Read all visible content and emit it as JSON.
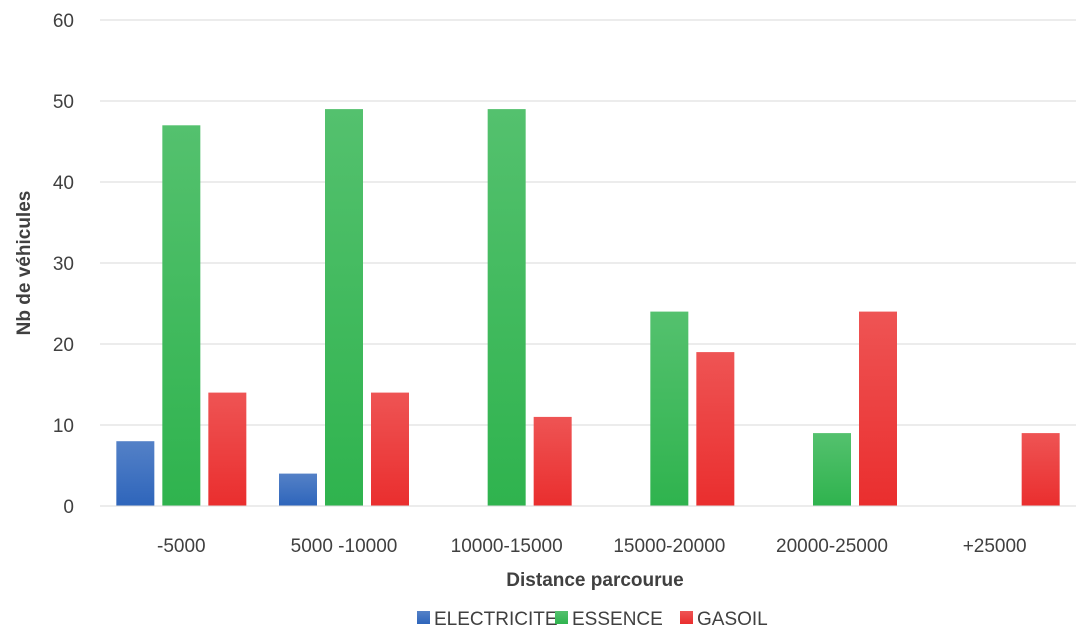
{
  "chart_data": {
    "type": "bar",
    "categories": [
      "-5000",
      "5000 -10000",
      "10000-15000",
      "15000-20000",
      "20000-25000",
      "+25000"
    ],
    "series": [
      {
        "name": "ELECTRICITE",
        "values": [
          8,
          4,
          0,
          0,
          0,
          0
        ],
        "color": "#2e65bb"
      },
      {
        "name": "ESSENCE",
        "values": [
          47,
          49,
          49,
          24,
          9,
          0
        ],
        "color": "#2fb34e"
      },
      {
        "name": "GASOIL",
        "values": [
          14,
          14,
          11,
          19,
          24,
          9
        ],
        "color": "#ea2e2e"
      }
    ],
    "title": "",
    "xlabel": "Distance parcourue",
    "ylabel": "Nb de véhicules",
    "ylim": [
      0,
      60
    ],
    "yticks": [
      0,
      10,
      20,
      30,
      40,
      50,
      60
    ],
    "grid": true,
    "legend_position": "bottom"
  }
}
